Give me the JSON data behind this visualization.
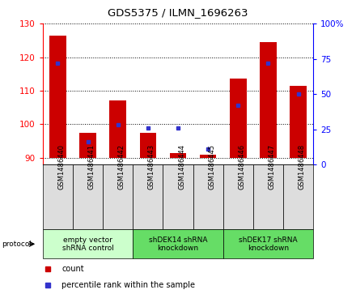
{
  "title": "GDS5375 / ILMN_1696263",
  "samples": [
    "GSM1486440",
    "GSM1486441",
    "GSM1486442",
    "GSM1486443",
    "GSM1486444",
    "GSM1486445",
    "GSM1486446",
    "GSM1486447",
    "GSM1486448"
  ],
  "counts": [
    126.5,
    97.5,
    107.0,
    97.5,
    91.5,
    91.0,
    113.5,
    124.5,
    111.5
  ],
  "percentiles": [
    72,
    16,
    28,
    26,
    26,
    11,
    42,
    72,
    50
  ],
  "ylim_left": [
    88,
    130
  ],
  "ylim_right": [
    0,
    100
  ],
  "yticks_left": [
    90,
    100,
    110,
    120,
    130
  ],
  "yticks_right": [
    0,
    25,
    50,
    75,
    100
  ],
  "bar_color": "#cc0000",
  "dot_color": "#3333cc",
  "bar_bottom": 90,
  "groups": [
    {
      "label": "empty vector\nshRNA control",
      "start": 0,
      "end": 3,
      "color": "#ccffcc"
    },
    {
      "label": "shDEK14 shRNA\nknockdown",
      "start": 3,
      "end": 6,
      "color": "#66dd66"
    },
    {
      "label": "shDEK17 shRNA\nknockdown",
      "start": 6,
      "end": 9,
      "color": "#66dd66"
    }
  ],
  "legend_count_label": "count",
  "legend_pct_label": "percentile rank within the sample",
  "protocol_label": "protocol",
  "sample_cell_color": "#dddddd",
  "fig_bg_color": "#ffffff"
}
